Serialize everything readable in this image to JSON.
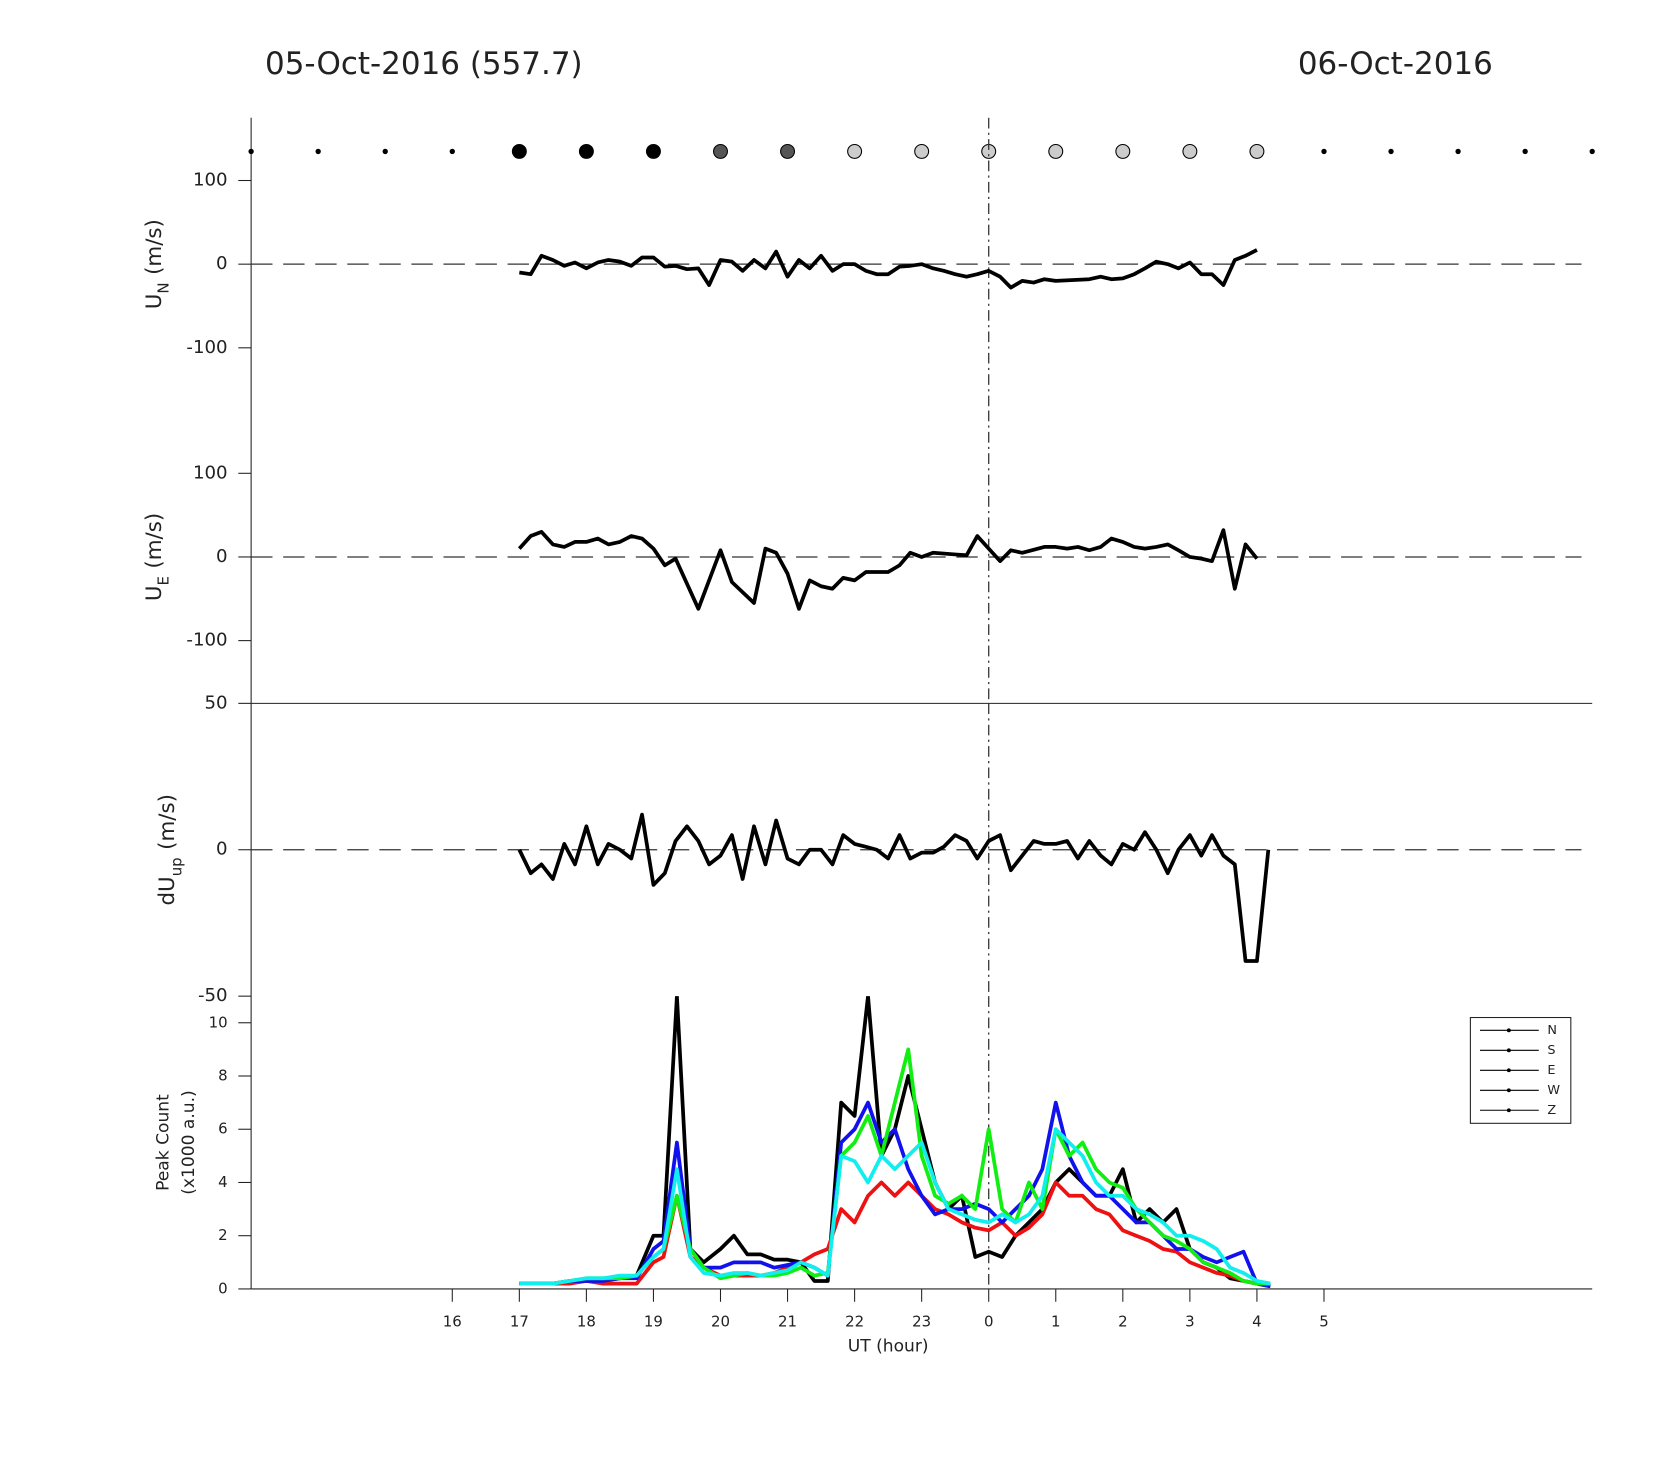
{
  "header": {
    "left": "05-Oct-2016 (557.7)",
    "right": "06-Oct-2016"
  },
  "chart_data": [
    {
      "type": "markers",
      "xlim": [
        13,
        33
      ],
      "x": [
        13,
        14,
        15,
        16,
        17,
        18,
        19,
        20,
        21,
        22,
        23,
        24,
        25,
        26,
        27,
        28,
        29,
        30,
        31,
        32,
        33
      ],
      "colors": [
        "#000000",
        "#000000",
        "#000000",
        "#000000",
        "#000000",
        "#000000",
        "#000000",
        "#555555",
        "#555555",
        "#cccccc",
        "#cccccc",
        "#cccccc",
        "#cccccc",
        "#cccccc",
        "#cccccc",
        "#cccccc",
        "#000000",
        "#000000",
        "#000000",
        "#000000",
        "#000000"
      ],
      "sizes": [
        3,
        3,
        3,
        3,
        12,
        12,
        12,
        12,
        12,
        12,
        12,
        12,
        12,
        12,
        12,
        12,
        3,
        3,
        3,
        3,
        3
      ]
    },
    {
      "type": "line",
      "ylabel": {
        "main": "U",
        "sub": "N",
        "unit": "(m/s)"
      },
      "xlim": [
        13,
        33
      ],
      "ylim": [
        -175,
        175
      ],
      "yticks": [
        -100,
        0,
        100
      ],
      "hline": 0,
      "vline": 24,
      "color": "#000000",
      "x": [
        17,
        17.17,
        17.33,
        17.5,
        17.67,
        17.83,
        18,
        18.17,
        18.33,
        18.5,
        18.67,
        18.83,
        19,
        19.17,
        19.33,
        19.5,
        19.67,
        19.83,
        20,
        20.17,
        20.33,
        20.5,
        20.67,
        20.83,
        21,
        21.17,
        21.33,
        21.5,
        21.67,
        21.83,
        22,
        22.17,
        22.33,
        22.5,
        22.67,
        22.83,
        23,
        23.17,
        23.33,
        23.5,
        23.67,
        23.83,
        24,
        24.17,
        24.33,
        24.5,
        24.67,
        24.83,
        25,
        25.5,
        25.67,
        25.83,
        26,
        26.17,
        26.33,
        26.5,
        26.67,
        26.83,
        27,
        27.17,
        27.33,
        27.5,
        27.67,
        27.83,
        28
      ],
      "values": [
        -10,
        -12,
        10,
        5,
        -2,
        2,
        -5,
        2,
        5,
        3,
        -2,
        8,
        8,
        -3,
        -2,
        -6,
        -5,
        -25,
        5,
        3,
        -8,
        5,
        -5,
        15,
        -15,
        5,
        -5,
        10,
        -8,
        0,
        0,
        -8,
        -12,
        -12,
        -3,
        -2,
        0,
        -5,
        -8,
        -12,
        -15,
        -12,
        -8,
        -15,
        -28,
        -20,
        -22,
        -18,
        -20,
        -18,
        -15,
        -18,
        -17,
        -12,
        -5,
        3,
        0,
        -5,
        2,
        -12,
        -12,
        -25,
        5,
        10,
        17
      ]
    },
    {
      "type": "line",
      "ylabel": {
        "main": "U",
        "sub": "E",
        "unit": "(m/s)"
      },
      "xlim": [
        13,
        33
      ],
      "ylim": [
        -175,
        175
      ],
      "yticks": [
        -100,
        0,
        100
      ],
      "hline": 0,
      "vline": 24,
      "color": "#000000",
      "x": [
        17,
        17.17,
        17.33,
        17.5,
        17.67,
        17.83,
        18,
        18.17,
        18.33,
        18.5,
        18.67,
        18.83,
        19,
        19.17,
        19.33,
        19.67,
        20,
        20.17,
        20.5,
        20.67,
        20.83,
        21,
        21.17,
        21.33,
        21.5,
        21.67,
        21.83,
        22,
        22.17,
        22.33,
        22.5,
        22.67,
        22.83,
        23,
        23.17,
        23.5,
        23.67,
        23.83,
        24,
        24.17,
        24.33,
        24.5,
        24.83,
        25,
        25.17,
        25.33,
        25.5,
        25.67,
        25.83,
        26,
        26.17,
        26.33,
        26.5,
        26.67,
        26.83,
        27,
        27.17,
        27.33,
        27.5,
        27.67,
        27.83,
        28
      ],
      "values": [
        10,
        25,
        30,
        15,
        12,
        18,
        18,
        22,
        15,
        18,
        25,
        22,
        10,
        -10,
        -2,
        -62,
        8,
        -30,
        -55,
        10,
        5,
        -20,
        -62,
        -28,
        -35,
        -38,
        -25,
        -28,
        -18,
        -18,
        -18,
        -10,
        5,
        0,
        5,
        3,
        2,
        25,
        10,
        -5,
        8,
        5,
        12,
        12,
        10,
        12,
        8,
        12,
        22,
        18,
        12,
        10,
        12,
        15,
        8,
        0,
        -2,
        -5,
        32,
        -38,
        15,
        -2
      ]
    },
    {
      "type": "line",
      "ylabel": {
        "main": "dU",
        "sub": "up",
        "unit": "(m/s)"
      },
      "xlim": [
        13,
        33
      ],
      "ylim": [
        -50,
        50
      ],
      "yticks": [
        -50,
        0,
        50
      ],
      "hline": 0,
      "vline": 24,
      "color": "#000000",
      "x": [
        17,
        17.17,
        17.33,
        17.5,
        17.67,
        17.83,
        18,
        18.17,
        18.33,
        18.5,
        18.67,
        18.83,
        19,
        19.17,
        19.33,
        19.5,
        19.67,
        19.83,
        20,
        20.17,
        20.33,
        20.5,
        20.67,
        20.83,
        21,
        21.17,
        21.33,
        21.5,
        21.67,
        21.83,
        22,
        22.17,
        22.33,
        22.5,
        22.67,
        22.83,
        23,
        23.17,
        23.33,
        23.5,
        23.67,
        23.83,
        24,
        24.17,
        24.33,
        24.5,
        24.67,
        24.83,
        25,
        25.17,
        25.33,
        25.5,
        25.67,
        25.83,
        26,
        26.17,
        26.33,
        26.5,
        26.67,
        26.83,
        27,
        27.17,
        27.33,
        27.5,
        27.67,
        27.83,
        28,
        28.17
      ],
      "values": [
        0,
        -8,
        -5,
        -10,
        2,
        -5,
        8,
        -5,
        2,
        0,
        -3,
        12,
        -12,
        -8,
        3,
        8,
        3,
        -5,
        -2,
        5,
        -10,
        8,
        -5,
        10,
        -3,
        -5,
        0,
        0,
        -5,
        5,
        2,
        1,
        0,
        -3,
        5,
        -3,
        -1,
        -1,
        1,
        5,
        3,
        -3,
        3,
        5,
        -7,
        -2,
        3,
        2,
        2,
        3,
        -3,
        3,
        -2,
        -5,
        2,
        0,
        6,
        0,
        -8,
        0,
        5,
        -2,
        5,
        -2,
        -5,
        -38,
        -38,
        0
      ]
    },
    {
      "type": "multiline",
      "ylabel": {
        "main": "Peak Count",
        "unit": "(x1000 a.u.)"
      },
      "xlabel": "UT (hour)",
      "xlim": [
        13,
        33
      ],
      "ylim": [
        0,
        11
      ],
      "yticks": [
        0,
        2,
        4,
        6,
        8,
        10
      ],
      "vline": 24,
      "xticks": [
        16,
        17,
        18,
        19,
        20,
        21,
        22,
        23,
        {
          "value": 24,
          "label": "0"
        },
        {
          "value": 25,
          "label": "1"
        },
        {
          "value": 26,
          "label": "2"
        },
        {
          "value": 27,
          "label": "3"
        },
        {
          "value": 28,
          "label": "4"
        },
        {
          "value": 29,
          "label": "5"
        }
      ],
      "legend": "upper right",
      "legend_color": "#000000",
      "x": [
        17,
        17.25,
        17.5,
        17.75,
        18,
        18.25,
        18.5,
        18.75,
        19,
        19.15,
        19.35,
        19.55,
        19.75,
        20,
        20.2,
        20.4,
        20.6,
        20.8,
        21,
        21.2,
        21.4,
        21.6,
        21.8,
        22,
        22.2,
        22.4,
        22.6,
        22.8,
        23,
        23.2,
        23.4,
        23.6,
        23.8,
        24,
        24.2,
        24.4,
        24.6,
        24.8,
        25,
        25.2,
        25.4,
        25.6,
        25.8,
        26,
        26.2,
        26.4,
        26.6,
        26.8,
        27,
        27.2,
        27.4,
        27.6,
        27.8,
        28,
        28.2
      ],
      "series": [
        {
          "name": "N",
          "color": "#000000",
          "values": [
            0.2,
            0.2,
            0.2,
            0.3,
            0.3,
            0.3,
            0.4,
            0.5,
            2,
            2,
            11,
            1.5,
            1.0,
            1.5,
            2,
            1.3,
            1.3,
            1.1,
            1.1,
            1.0,
            0.3,
            0.3,
            7,
            6.5,
            11,
            5,
            6,
            8,
            6,
            4,
            3,
            3.5,
            1.2,
            1.4,
            1.2,
            2,
            2.5,
            3,
            4,
            4.5,
            4,
            3.5,
            3.5,
            4.5,
            2.5,
            3,
            2.5,
            3,
            1.5,
            1,
            0.8,
            0.4,
            0.3,
            0.2,
            0.1
          ]
        },
        {
          "name": "S",
          "color": "#ee1111",
          "values": [
            0.2,
            0.2,
            0.2,
            0.2,
            0.3,
            0.2,
            0.2,
            0.2,
            1,
            1.2,
            3.5,
            1.2,
            0.8,
            0.5,
            0.5,
            0.5,
            0.5,
            0.6,
            0.8,
            1.0,
            1.3,
            1.5,
            3,
            2.5,
            3.5,
            4,
            3.5,
            4,
            3.5,
            3,
            2.8,
            2.5,
            2.3,
            2.2,
            2.5,
            2,
            2.3,
            2.8,
            4,
            3.5,
            3.5,
            3,
            2.8,
            2.2,
            2,
            1.8,
            1.5,
            1.4,
            1,
            0.8,
            0.6,
            0.5,
            0.3,
            0.2,
            0.2
          ]
        },
        {
          "name": "E",
          "color": "#1111ee",
          "values": [
            0.2,
            0.2,
            0.2,
            0.3,
            0.3,
            0.3,
            0.4,
            0.4,
            1.5,
            1.8,
            5.5,
            1.5,
            0.8,
            0.8,
            1.0,
            1.0,
            1.0,
            0.8,
            0.9,
            1.0,
            0.8,
            0.5,
            5.5,
            6,
            7,
            5.5,
            6,
            4.5,
            3.5,
            2.8,
            3,
            3,
            3.2,
            3,
            2.5,
            3,
            3.5,
            4.5,
            7,
            5,
            4,
            3.5,
            3.5,
            3,
            2.5,
            2.5,
            2,
            1.5,
            1.5,
            1.2,
            1,
            1.2,
            1.4,
            0.2,
            0.1
          ]
        },
        {
          "name": "W",
          "color": "#11ee11",
          "values": [
            0.2,
            0.2,
            0.2,
            0.3,
            0.4,
            0.4,
            0.4,
            0.5,
            1.2,
            1.5,
            3.5,
            1.5,
            0.8,
            0.4,
            0.5,
            0.6,
            0.5,
            0.5,
            0.6,
            0.8,
            0.5,
            0.6,
            5,
            5.5,
            6.5,
            5,
            7,
            9,
            5,
            3.5,
            3.2,
            3.5,
            3,
            6,
            3,
            2.5,
            4,
            3,
            6,
            5,
            5.5,
            4.5,
            4,
            3.8,
            3,
            2.5,
            2,
            1.8,
            1.5,
            1,
            0.8,
            0.6,
            0.3,
            0.2,
            0.2
          ]
        },
        {
          "name": "Z",
          "color": "#11eeee",
          "values": [
            0.2,
            0.2,
            0.2,
            0.3,
            0.4,
            0.4,
            0.5,
            0.5,
            1.2,
            1.5,
            4.5,
            1.2,
            0.6,
            0.5,
            0.6,
            0.6,
            0.5,
            0.6,
            0.7,
            1.0,
            0.8,
            0.5,
            5,
            4.8,
            4,
            5,
            4.5,
            5,
            5.5,
            4,
            3,
            2.8,
            2.6,
            2.5,
            2.8,
            2.5,
            2.8,
            3.5,
            6,
            5.5,
            5,
            4,
            3.5,
            3.5,
            3,
            2.8,
            2.5,
            2,
            2,
            1.8,
            1.5,
            0.8,
            0.6,
            0.3,
            0.2
          ]
        }
      ]
    }
  ]
}
